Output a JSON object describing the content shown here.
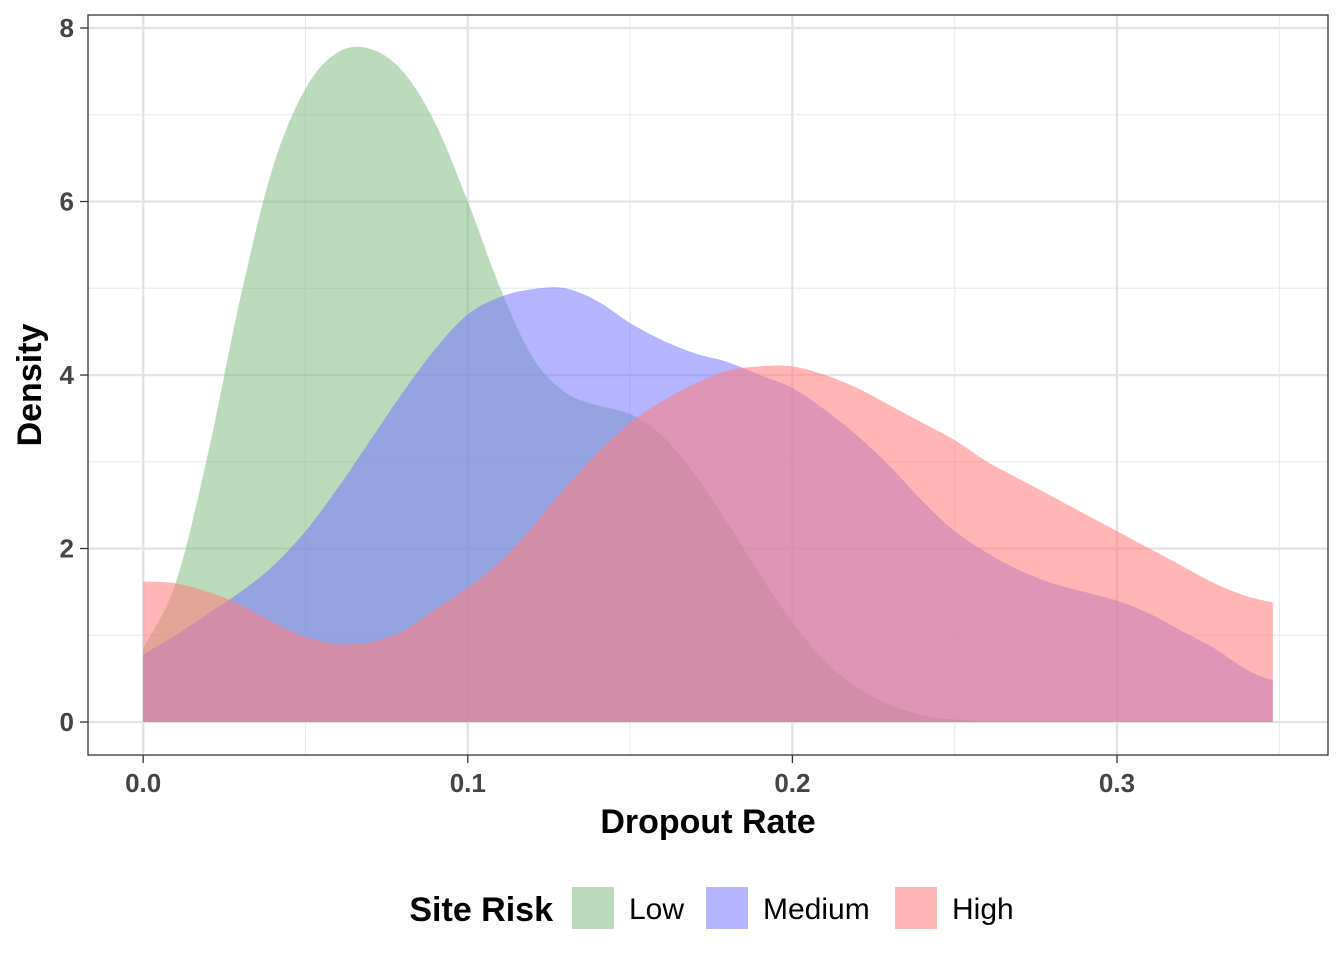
{
  "chart_data": {
    "type": "area",
    "subtype": "density",
    "xlabel": "Dropout Rate",
    "ylabel": "Density",
    "xlim": [
      -0.017,
      0.365
    ],
    "ylim": [
      -0.38,
      8.15
    ],
    "x_ticks": [
      {
        "value": 0.0,
        "label": "0.0"
      },
      {
        "value": 0.1,
        "label": "0.1"
      },
      {
        "value": 0.2,
        "label": "0.2"
      },
      {
        "value": 0.3,
        "label": "0.3"
      }
    ],
    "y_ticks": [
      {
        "value": 0,
        "label": "0"
      },
      {
        "value": 2,
        "label": "2"
      },
      {
        "value": 4,
        "label": "4"
      },
      {
        "value": 6,
        "label": "6"
      },
      {
        "value": 8,
        "label": "8"
      }
    ],
    "grid": true,
    "legend": {
      "title": "Site Risk",
      "position": "bottom",
      "items": [
        "Low",
        "Medium",
        "High"
      ]
    },
    "series": [
      {
        "name": "Low",
        "color": "#7DB87D",
        "opacity": 0.52,
        "x": [
          0.0,
          0.01,
          0.02,
          0.03,
          0.04,
          0.05,
          0.06,
          0.07,
          0.08,
          0.09,
          0.1,
          0.11,
          0.12,
          0.13,
          0.14,
          0.15,
          0.16,
          0.17,
          0.18,
          0.19,
          0.2,
          0.21,
          0.22,
          0.23,
          0.24,
          0.25,
          0.26,
          0.27,
          0.28,
          0.29,
          0.3,
          0.31,
          0.32,
          0.33,
          0.34,
          0.348
        ],
        "y": [
          0.85,
          1.6,
          3.1,
          4.9,
          6.4,
          7.3,
          7.72,
          7.76,
          7.5,
          6.9,
          6.0,
          5.0,
          4.2,
          3.8,
          3.65,
          3.55,
          3.3,
          2.85,
          2.3,
          1.7,
          1.15,
          0.7,
          0.4,
          0.2,
          0.08,
          0.03,
          0.01,
          0.0,
          0.0,
          0.0,
          0.0,
          0.0,
          0.0,
          0.0,
          0.0,
          0.0
        ]
      },
      {
        "name": "Medium",
        "color": "#7777FF",
        "opacity": 0.55,
        "x": [
          0.0,
          0.01,
          0.02,
          0.03,
          0.04,
          0.05,
          0.06,
          0.07,
          0.08,
          0.09,
          0.1,
          0.11,
          0.12,
          0.13,
          0.14,
          0.15,
          0.16,
          0.17,
          0.18,
          0.19,
          0.2,
          0.21,
          0.22,
          0.23,
          0.24,
          0.25,
          0.26,
          0.27,
          0.28,
          0.29,
          0.3,
          0.31,
          0.32,
          0.33,
          0.34,
          0.348
        ],
        "y": [
          0.78,
          1.0,
          1.25,
          1.5,
          1.8,
          2.2,
          2.7,
          3.25,
          3.8,
          4.3,
          4.7,
          4.9,
          4.99,
          5.0,
          4.85,
          4.6,
          4.4,
          4.25,
          4.15,
          4.0,
          3.85,
          3.6,
          3.3,
          2.95,
          2.55,
          2.2,
          1.95,
          1.75,
          1.6,
          1.5,
          1.4,
          1.25,
          1.05,
          0.85,
          0.6,
          0.48
        ]
      },
      {
        "name": "High",
        "color": "#FF7F7F",
        "opacity": 0.58,
        "x": [
          0.0,
          0.01,
          0.02,
          0.03,
          0.04,
          0.05,
          0.06,
          0.07,
          0.08,
          0.09,
          0.1,
          0.11,
          0.12,
          0.13,
          0.14,
          0.15,
          0.16,
          0.17,
          0.18,
          0.19,
          0.2,
          0.21,
          0.22,
          0.23,
          0.24,
          0.25,
          0.26,
          0.27,
          0.28,
          0.29,
          0.3,
          0.31,
          0.32,
          0.33,
          0.34,
          0.348
        ],
        "y": [
          1.62,
          1.6,
          1.5,
          1.35,
          1.15,
          0.98,
          0.9,
          0.92,
          1.05,
          1.3,
          1.55,
          1.85,
          2.25,
          2.7,
          3.1,
          3.45,
          3.7,
          3.9,
          4.05,
          4.1,
          4.1,
          4.0,
          3.85,
          3.65,
          3.45,
          3.25,
          3.0,
          2.8,
          2.6,
          2.4,
          2.2,
          2.0,
          1.8,
          1.6,
          1.45,
          1.38
        ]
      }
    ]
  }
}
